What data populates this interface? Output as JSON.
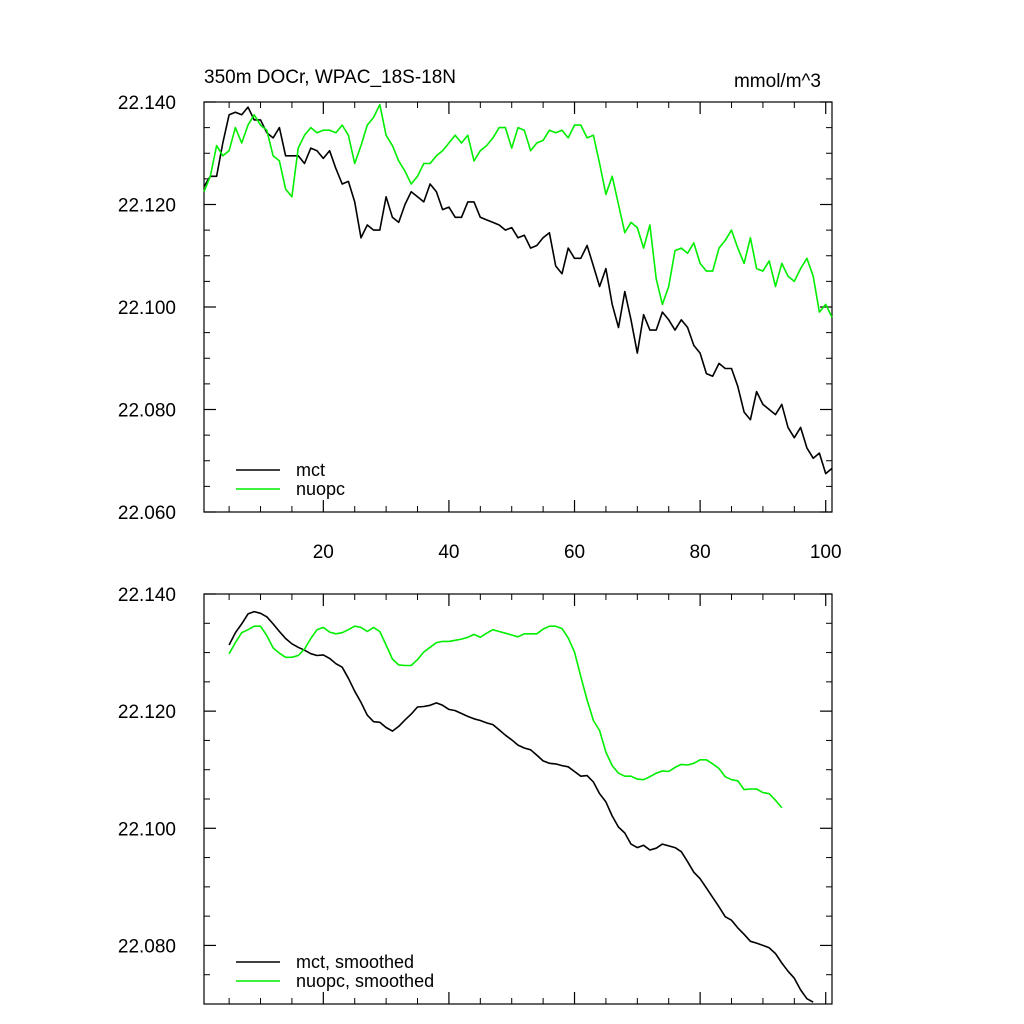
{
  "figure": {
    "title_left": "350m DOCr, WPAC_18S-18N",
    "title_right": "mmol/m^3"
  },
  "chart_data": [
    {
      "type": "line",
      "title": "350m DOCr, WPAC_18S-18N",
      "units": "mmol/m^3",
      "xlabel": "",
      "ylabel": "",
      "xlim": [
        1,
        101
      ],
      "ylim": [
        22.06,
        22.14
      ],
      "x_ticks": [
        20,
        40,
        60,
        80,
        100
      ],
      "y_ticks": [
        22.06,
        22.08,
        22.1,
        22.12,
        22.14
      ],
      "x_tick_labels": [
        "20",
        "40",
        "60",
        "80",
        "100"
      ],
      "y_tick_labels": [
        "22.060",
        "22.080",
        "22.100",
        "22.120",
        "22.140"
      ],
      "x_start": 1,
      "x_step": 1,
      "legend": "bottom-left",
      "series": [
        {
          "name": "mct",
          "color": "#000000",
          "values": [
            22.1235,
            22.1255,
            22.1255,
            22.132,
            22.1375,
            22.138,
            22.1375,
            22.139,
            22.1365,
            22.1365,
            22.134,
            22.133,
            22.135,
            22.1295,
            22.1295,
            22.1295,
            22.128,
            22.131,
            22.1305,
            22.129,
            22.1305,
            22.127,
            22.124,
            22.1245,
            22.1205,
            22.1135,
            22.116,
            22.115,
            22.115,
            22.1215,
            22.1175,
            22.1165,
            22.12,
            22.1225,
            22.1215,
            22.1205,
            22.124,
            22.1225,
            22.119,
            22.1195,
            22.1175,
            22.1175,
            22.1205,
            22.1205,
            22.1175,
            22.117,
            22.1165,
            22.116,
            22.115,
            22.1155,
            22.1135,
            22.114,
            22.1115,
            22.112,
            22.1135,
            22.1145,
            22.108,
            22.1065,
            22.1115,
            22.1095,
            22.1095,
            22.112,
            22.108,
            22.104,
            22.1075,
            22.1005,
            22.096,
            22.103,
            22.0975,
            22.091,
            22.0985,
            22.0955,
            22.0955,
            22.099,
            22.0975,
            22.0955,
            22.0975,
            22.096,
            22.0925,
            22.091,
            22.087,
            22.0865,
            22.089,
            22.088,
            22.088,
            22.0845,
            22.0795,
            22.078,
            22.0835,
            22.081,
            22.08,
            22.079,
            22.081,
            22.0765,
            22.0745,
            22.0765,
            22.0725,
            22.0705,
            22.0715,
            22.0675,
            22.0685
          ]
        },
        {
          "name": "nuopc",
          "color": "#00ee00",
          "values": [
            22.1225,
            22.1255,
            22.1315,
            22.1295,
            22.1305,
            22.135,
            22.132,
            22.1355,
            22.1375,
            22.1355,
            22.1345,
            22.1295,
            22.1285,
            22.123,
            22.1215,
            22.131,
            22.1335,
            22.135,
            22.134,
            22.1345,
            22.1345,
            22.134,
            22.1355,
            22.1335,
            22.128,
            22.1315,
            22.1355,
            22.137,
            22.1395,
            22.1335,
            22.1315,
            22.1285,
            22.1265,
            22.124,
            22.1255,
            22.128,
            22.128,
            22.1295,
            22.1305,
            22.132,
            22.1335,
            22.132,
            22.1335,
            22.1285,
            22.1305,
            22.1315,
            22.133,
            22.135,
            22.135,
            22.131,
            22.135,
            22.1345,
            22.1305,
            22.132,
            22.1325,
            22.1345,
            22.134,
            22.1345,
            22.133,
            22.1355,
            22.1355,
            22.133,
            22.1335,
            22.128,
            22.122,
            22.1255,
            22.12,
            22.1145,
            22.1165,
            22.1155,
            22.1115,
            22.116,
            22.1055,
            22.1005,
            22.104,
            22.111,
            22.1115,
            22.1105,
            22.1125,
            22.1085,
            22.107,
            22.107,
            22.1115,
            22.113,
            22.115,
            22.1115,
            22.1085,
            22.1135,
            22.1075,
            22.107,
            22.109,
            22.104,
            22.1085,
            22.106,
            22.105,
            22.1075,
            22.1095,
            22.106,
            22.099,
            22.1005,
            22.098
          ]
        }
      ]
    },
    {
      "type": "line",
      "title": "",
      "xlabel": "",
      "ylabel": "",
      "xlim": [
        1,
        101
      ],
      "ylim": [
        22.07,
        22.14
      ],
      "x_ticks": [
        20,
        40,
        60,
        80,
        100
      ],
      "y_ticks": [
        22.08,
        22.1,
        22.12,
        22.14
      ],
      "y_tick_labels": [
        "22.080",
        "22.100",
        "22.120",
        "22.140"
      ],
      "x_start": 5,
      "x_step": 1,
      "legend": "bottom-left",
      "series": [
        {
          "name": "mct, smoothed",
          "color": "#000000",
          "values": [
            22.1313,
            22.1334,
            22.1349,
            22.1366,
            22.137,
            22.1367,
            22.1361,
            22.1349,
            22.1336,
            22.1324,
            22.1315,
            22.1309,
            22.1304,
            22.1298,
            22.1295,
            22.1296,
            22.129,
            22.1281,
            22.1275,
            22.1256,
            22.1234,
            22.1215,
            22.1193,
            22.1182,
            22.1181,
            22.1172,
            22.1166,
            22.1174,
            22.1185,
            22.1195,
            22.1207,
            22.1208,
            22.121,
            22.1214,
            22.121,
            22.1203,
            22.1201,
            22.1196,
            22.1191,
            22.1187,
            22.1184,
            22.118,
            22.1177,
            22.1168,
            22.1159,
            22.1151,
            22.1142,
            22.1137,
            22.1134,
            22.1125,
            22.1115,
            22.1111,
            22.111,
            22.1107,
            22.1105,
            22.1097,
            22.1089,
            22.109,
            22.1079,
            22.1059,
            22.1045,
            22.1021,
            22.1002,
            22.0992,
            22.0973,
            22.0967,
            22.0971,
            22.0963,
            22.0966,
            22.0973,
            22.097,
            22.0967,
            22.096,
            22.0943,
            22.0925,
            22.0914,
            22.0898,
            22.0882,
            22.0866,
            22.0849,
            22.0843,
            22.083,
            22.0819,
            22.0807,
            22.0804,
            22.08,
            22.0796,
            22.0786,
            22.077,
            22.0756,
            22.0744,
            22.0724,
            22.0709,
            22.0703
          ]
        },
        {
          "name": "nuopc, smoothed",
          "color": "#00ee00",
          "values": [
            22.1298,
            22.1317,
            22.1334,
            22.1339,
            22.1345,
            22.1345,
            22.1329,
            22.1308,
            22.1299,
            22.1292,
            22.1292,
            22.1295,
            22.1306,
            22.1324,
            22.1339,
            22.1343,
            22.1335,
            22.1332,
            22.1334,
            22.1339,
            22.1345,
            22.1343,
            22.1336,
            22.1343,
            22.1336,
            22.1313,
            22.1289,
            22.1279,
            22.1278,
            22.1278,
            22.1288,
            22.1301,
            22.1309,
            22.1317,
            22.1319,
            22.1319,
            22.1321,
            22.1323,
            22.1326,
            22.1331,
            22.1326,
            22.1333,
            22.1339,
            22.1336,
            22.1333,
            22.133,
            22.1327,
            22.1332,
            22.1332,
            22.1332,
            22.134,
            22.1345,
            22.1345,
            22.1341,
            22.1325,
            22.1301,
            22.1259,
            22.1219,
            22.1184,
            22.1167,
            22.113,
            22.1107,
            22.1094,
            22.1089,
            22.1089,
            22.1084,
            22.1083,
            22.1088,
            22.1094,
            22.1098,
            22.1097,
            22.1104,
            22.1109,
            22.1108,
            22.1111,
            22.1117,
            22.1117,
            22.111,
            22.1102,
            22.1088,
            22.1083,
            22.1081,
            22.1066,
            22.1067,
            22.1067,
            22.1061,
            22.1059,
            22.1048,
            22.1035
          ]
        }
      ]
    }
  ]
}
